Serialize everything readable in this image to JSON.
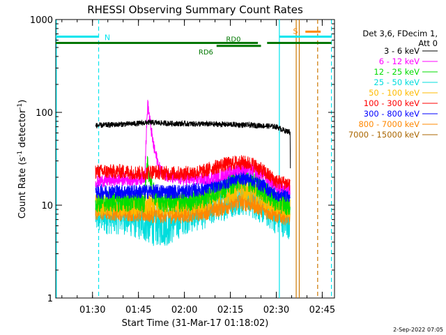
{
  "chart_data": {
    "type": "line",
    "title": "RHESSI Observing Summary Count Rates",
    "xlabel": "Start Time (31-Mar-17 01:18:02)",
    "ylabel_main": "Count Rate (s",
    "ylabel_sup1": "-1",
    "ylabel_mid": " detector",
    "ylabel_sup2": "-1",
    "ylabel_end": ")",
    "footer_date": "2-Sep-2022 07:05",
    "x_range_minutes": [
      18,
      109
    ],
    "y_range": [
      1,
      1000
    ],
    "y_scale": "log",
    "x_ticks": [
      {
        "minute": 30,
        "label": "01:30"
      },
      {
        "minute": 45,
        "label": "01:45"
      },
      {
        "minute": 60,
        "label": "02:00"
      },
      {
        "minute": 75,
        "label": "02:15"
      },
      {
        "minute": 90,
        "label": "02:30"
      },
      {
        "minute": 105,
        "label": "02:45"
      }
    ],
    "y_ticks": [
      {
        "value": 1,
        "label": "1"
      },
      {
        "value": 10,
        "label": "10"
      },
      {
        "value": 100,
        "label": "100"
      },
      {
        "value": 1000,
        "label": "1000"
      }
    ],
    "legend": {
      "header_line1": "Det 3,6, FDecim 1,",
      "header_line2": "Att 0",
      "position": "right",
      "entries": [
        {
          "label": "3 - 6 keV",
          "color": "#000000"
        },
        {
          "label": "6 - 12 keV",
          "color": "#ff00ff"
        },
        {
          "label": "12 - 25 keV",
          "color": "#00dd00"
        },
        {
          "label": "25 - 50 keV",
          "color": "#00dddd"
        },
        {
          "label": "50 - 100 keV",
          "color": "#ffbb00"
        },
        {
          "label": "100 - 300 keV",
          "color": "#ff0000"
        },
        {
          "label": "300 - 800 keV",
          "color": "#0000ff"
        },
        {
          "label": "800 - 7000 keV",
          "color": "#ff8800"
        },
        {
          "label": "7000 - 15000 keV",
          "color": "#aa6600"
        }
      ]
    },
    "series": [
      {
        "name": "3 - 6 keV",
        "color": "#000000",
        "noise": 0.03,
        "points": [
          [
            31,
            72
          ],
          [
            38,
            74
          ],
          [
            45,
            76
          ],
          [
            48,
            78
          ],
          [
            55,
            76
          ],
          [
            65,
            75
          ],
          [
            75,
            74
          ],
          [
            85,
            72
          ],
          [
            90,
            70
          ],
          [
            93,
            63
          ],
          [
            94.5,
            62
          ]
        ],
        "end_drop": [
          [
            94.5,
            62
          ],
          [
            94.6,
            25
          ]
        ]
      },
      {
        "name": "6 - 12 keV",
        "color": "#ff00ff",
        "noise": 0.07,
        "points": [
          [
            31,
            18
          ],
          [
            40,
            19
          ],
          [
            45,
            19
          ],
          [
            47,
            20
          ],
          [
            48,
            125
          ],
          [
            49,
            70
          ],
          [
            50,
            42
          ],
          [
            52,
            24
          ],
          [
            55,
            20
          ],
          [
            60,
            19
          ],
          [
            66,
            19
          ],
          [
            72,
            21
          ],
          [
            78,
            25
          ],
          [
            82,
            24
          ],
          [
            86,
            21
          ],
          [
            90,
            16
          ],
          [
            94.5,
            15
          ]
        ],
        "end_drop": []
      },
      {
        "name": "12 - 25 keV",
        "color": "#00dd00",
        "noise": 0.12,
        "points": [
          [
            31,
            11
          ],
          [
            40,
            11
          ],
          [
            47,
            11
          ],
          [
            48,
            28
          ],
          [
            49.5,
            14
          ],
          [
            52,
            11
          ],
          [
            60,
            11
          ],
          [
            66,
            12
          ],
          [
            72,
            15
          ],
          [
            78,
            19
          ],
          [
            82,
            18
          ],
          [
            86,
            14
          ],
          [
            90,
            11
          ],
          [
            94.5,
            10
          ]
        ],
        "end_drop": []
      },
      {
        "name": "25 - 50 keV",
        "color": "#00dddd",
        "noise": 0.22,
        "points": [
          [
            31,
            8
          ],
          [
            40,
            8
          ],
          [
            45,
            7
          ],
          [
            50,
            6
          ],
          [
            55,
            6
          ],
          [
            60,
            8
          ],
          [
            66,
            9
          ],
          [
            72,
            11
          ],
          [
            78,
            13
          ],
          [
            82,
            12
          ],
          [
            86,
            10
          ],
          [
            90,
            8
          ],
          [
            94.5,
            7
          ]
        ],
        "end_drop": []
      },
      {
        "name": "50 - 100 keV",
        "color": "#ffbb00",
        "noise": 0.12,
        "points": [
          [
            31,
            10
          ],
          [
            40,
            10
          ],
          [
            50,
            10
          ],
          [
            60,
            10
          ],
          [
            66,
            11
          ],
          [
            72,
            13
          ],
          [
            78,
            15
          ],
          [
            82,
            14
          ],
          [
            86,
            12
          ],
          [
            90,
            10
          ],
          [
            94.5,
            9
          ]
        ],
        "end_drop": []
      },
      {
        "name": "100 - 300 keV",
        "color": "#ff0000",
        "noise": 0.08,
        "points": [
          [
            31,
            23
          ],
          [
            40,
            23
          ],
          [
            47,
            22
          ],
          [
            49,
            23
          ],
          [
            55,
            22
          ],
          [
            60,
            22
          ],
          [
            66,
            23
          ],
          [
            72,
            27
          ],
          [
            78,
            29
          ],
          [
            82,
            28
          ],
          [
            86,
            23
          ],
          [
            90,
            18
          ],
          [
            94.5,
            17
          ]
        ],
        "end_drop": []
      },
      {
        "name": "300 - 800 keV",
        "color": "#0000ff",
        "noise": 0.08,
        "points": [
          [
            31,
            14
          ],
          [
            40,
            14
          ],
          [
            50,
            14
          ],
          [
            60,
            14
          ],
          [
            66,
            15
          ],
          [
            72,
            17
          ],
          [
            78,
            20
          ],
          [
            82,
            19
          ],
          [
            86,
            16
          ],
          [
            90,
            13
          ],
          [
            94.5,
            13
          ]
        ],
        "end_drop": []
      },
      {
        "name": "800 - 7000 keV",
        "color": "#ff8800",
        "noise": 0.1,
        "points": [
          [
            31,
            8.5
          ],
          [
            40,
            8.5
          ],
          [
            50,
            8
          ],
          [
            60,
            8
          ],
          [
            66,
            8.5
          ],
          [
            72,
            9.5
          ],
          [
            78,
            11
          ],
          [
            82,
            10.5
          ],
          [
            86,
            9
          ],
          [
            90,
            8
          ],
          [
            94.5,
            7.5
          ]
        ],
        "end_drop": []
      }
    ],
    "flags": {
      "saa": {
        "label": "N",
        "color": "#00e5ee",
        "y": 655,
        "segments": [
          [
            18,
            32
          ],
          [
            91,
            108
          ]
        ]
      },
      "saa_label_minute": 33,
      "flare": {
        "label": "S",
        "color": "#ff8800",
        "y": 740,
        "segment": [
          99.5,
          104.5
        ],
        "label_minute": 97.5
      },
      "decimation_label_rd0": "RD0",
      "decimation_label_rd6": "RD6",
      "decimation_color": "#007700",
      "rd0_y": 560,
      "rd6_y": 520,
      "rd0_segments": [
        [
          18,
          84
        ],
        [
          87,
          108
        ]
      ],
      "rd6_segment": [
        70.5,
        85
      ],
      "rd0_label_minute": 76,
      "rd6_label_minute": 67
    },
    "vertical_markers": [
      {
        "minute": 18.2,
        "color": "#00e5ee",
        "style": "solid"
      },
      {
        "minute": 32,
        "color": "#00e5ee",
        "style": "dashed"
      },
      {
        "minute": 91,
        "color": "#00e5ee",
        "style": "solid"
      },
      {
        "minute": 96.5,
        "color": "#cc7700",
        "style": "solid"
      },
      {
        "minute": 97.5,
        "color": "#cc7700",
        "style": "solid"
      },
      {
        "minute": 103.5,
        "color": "#cc7700",
        "style": "dashed"
      },
      {
        "minute": 108,
        "color": "#00e5ee",
        "style": "dashed"
      }
    ]
  }
}
